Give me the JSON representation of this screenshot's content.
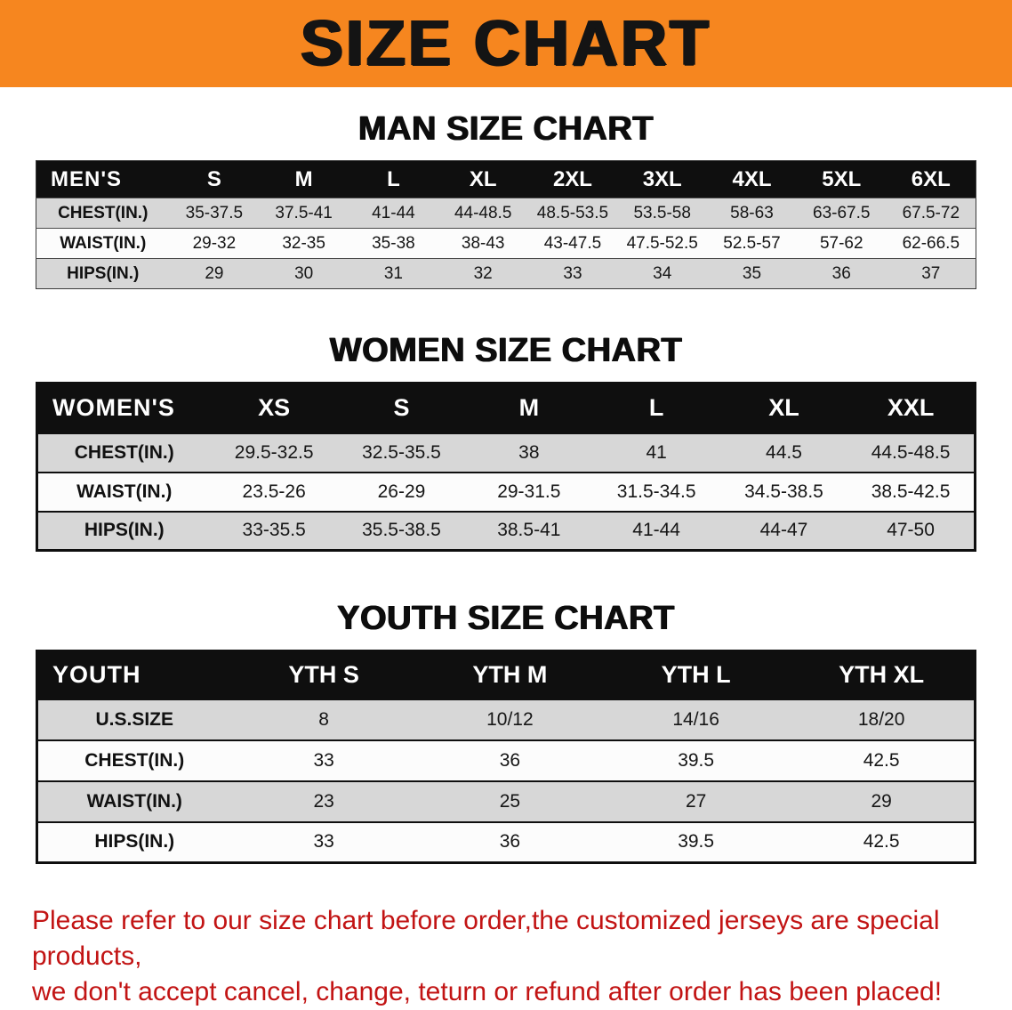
{
  "banner": {
    "title": "SIZE CHART"
  },
  "chart_data": [
    {
      "type": "table",
      "title": "MAN SIZE CHART",
      "header": [
        "MEN'S",
        "S",
        "M",
        "L",
        "XL",
        "2XL",
        "3XL",
        "4XL",
        "5XL",
        "6XL"
      ],
      "rows": [
        {
          "label": "CHEST(IN.)",
          "values": [
            "35-37.5",
            "37.5-41",
            "41-44",
            "44-48.5",
            "48.5-53.5",
            "53.5-58",
            "58-63",
            "63-67.5",
            "67.5-72"
          ]
        },
        {
          "label": "WAIST(IN.)",
          "values": [
            "29-32",
            "32-35",
            "35-38",
            "38-43",
            "43-47.5",
            "47.5-52.5",
            "52.5-57",
            "57-62",
            "62-66.5"
          ]
        },
        {
          "label": "HIPS(IN.)",
          "values": [
            "29",
            "30",
            "31",
            "32",
            "33",
            "34",
            "35",
            "36",
            "37"
          ]
        }
      ]
    },
    {
      "type": "table",
      "title": "WOMEN SIZE CHART",
      "header": [
        "WOMEN'S",
        "XS",
        "S",
        "M",
        "L",
        "XL",
        "XXL"
      ],
      "rows": [
        {
          "label": "CHEST(IN.)",
          "values": [
            "29.5-32.5",
            "32.5-35.5",
            "38",
            "41",
            "44.5",
            "44.5-48.5"
          ]
        },
        {
          "label": "WAIST(IN.)",
          "values": [
            "23.5-26",
            "26-29",
            "29-31.5",
            "31.5-34.5",
            "34.5-38.5",
            "38.5-42.5"
          ]
        },
        {
          "label": "HIPS(IN.)",
          "values": [
            "33-35.5",
            "35.5-38.5",
            "38.5-41",
            "41-44",
            "44-47",
            "47-50"
          ]
        }
      ]
    },
    {
      "type": "table",
      "title": "YOUTH SIZE CHART",
      "header": [
        "YOUTH",
        "YTH S",
        "YTH M",
        "YTH L",
        "YTH XL"
      ],
      "rows": [
        {
          "label": "U.S.SIZE",
          "values": [
            "8",
            "10/12",
            "14/16",
            "18/20"
          ]
        },
        {
          "label": "CHEST(IN.)",
          "values": [
            "33",
            "36",
            "39.5",
            "42.5"
          ]
        },
        {
          "label": "WAIST(IN.)",
          "values": [
            "23",
            "25",
            "27",
            "29"
          ]
        },
        {
          "label": "HIPS(IN.)",
          "values": [
            "33",
            "36",
            "39.5",
            "42.5"
          ]
        }
      ]
    }
  ],
  "footer": {
    "line1": "Please refer to our size chart before order,the customized jerseys are special products,",
    "line2": "we don't accept cancel, change, teturn or refund after order has been placed!"
  },
  "colors": {
    "banner_bg": "#f6861f",
    "header_bg": "#0f0f0f",
    "row_gray": "#d7d7d7",
    "row_white": "#fcfcfc",
    "note_red": "#c21414"
  }
}
